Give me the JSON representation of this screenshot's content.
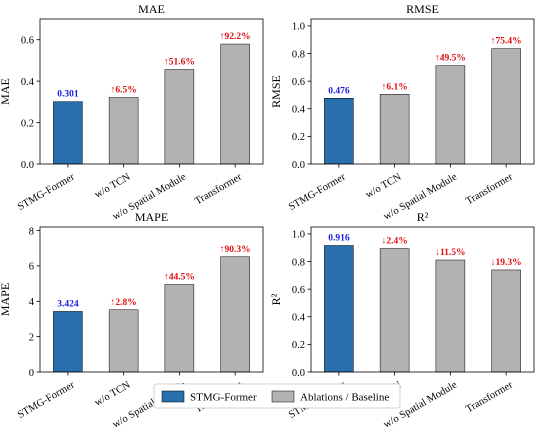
{
  "chart_data": [
    {
      "type": "bar",
      "title": "MAE",
      "ylabel": "MAE",
      "xlabel": "",
      "ylim": [
        0,
        0.7
      ],
      "yticks": [
        0.0,
        0.2,
        0.4,
        0.6
      ],
      "categories": [
        "STMG-Former",
        "w/o TCN",
        "w/o Spatial Module",
        "Transformer"
      ],
      "values": [
        0.301,
        0.321,
        0.456,
        0.579
      ],
      "labels": [
        "0.301",
        "↑6.5%",
        "↑51.6%",
        "↑92.2%"
      ]
    },
    {
      "type": "bar",
      "title": "RMSE",
      "ylabel": "RMSE",
      "xlabel": "",
      "ylim": [
        0,
        1.05
      ],
      "yticks": [
        0.0,
        0.2,
        0.4,
        0.6,
        0.8,
        1.0
      ],
      "categories": [
        "STMG-Former",
        "w/o TCN",
        "w/o Spatial Module",
        "Transformer"
      ],
      "values": [
        0.476,
        0.505,
        0.712,
        0.835
      ],
      "labels": [
        "0.476",
        "↑6.1%",
        "↑49.5%",
        "↑75.4%"
      ]
    },
    {
      "type": "bar",
      "title": "MAPE",
      "ylabel": "MAPE",
      "xlabel": "",
      "ylim": [
        0,
        8.2
      ],
      "yticks": [
        0,
        2,
        4,
        6,
        8
      ],
      "categories": [
        "STMG-Former",
        "w/o TCN",
        "w/o Spatial Module",
        "Transformer"
      ],
      "values": [
        3.424,
        3.52,
        4.948,
        6.516
      ],
      "labels": [
        "3.424",
        "↑2.8%",
        "↑44.5%",
        "↑90.3%"
      ]
    },
    {
      "type": "bar",
      "title": "R²",
      "ylabel": "R²",
      "xlabel": "",
      "ylim": [
        0,
        1.05
      ],
      "yticks": [
        0.0,
        0.2,
        0.4,
        0.6,
        0.8,
        1.0
      ],
      "categories": [
        "STMG-Former",
        "w/o TCN",
        "w/o Spatial Module",
        "Transformer"
      ],
      "values": [
        0.916,
        0.894,
        0.811,
        0.739
      ],
      "labels": [
        "0.916",
        "↓2.4%",
        "↓11.5%",
        "↓19.3%"
      ]
    }
  ],
  "legend": {
    "placement": "bottom-center",
    "items": [
      {
        "label": "STMG-Former",
        "color": "#2a6fad"
      },
      {
        "label": "Ablations / Baseline",
        "color": "#b2b2b2"
      }
    ]
  },
  "colors": {
    "highlight_bar": "#2a6fad",
    "other_bar": "#b2b2b2",
    "highlight_label": "#1a1ae6",
    "delta_label": "#e01010"
  }
}
